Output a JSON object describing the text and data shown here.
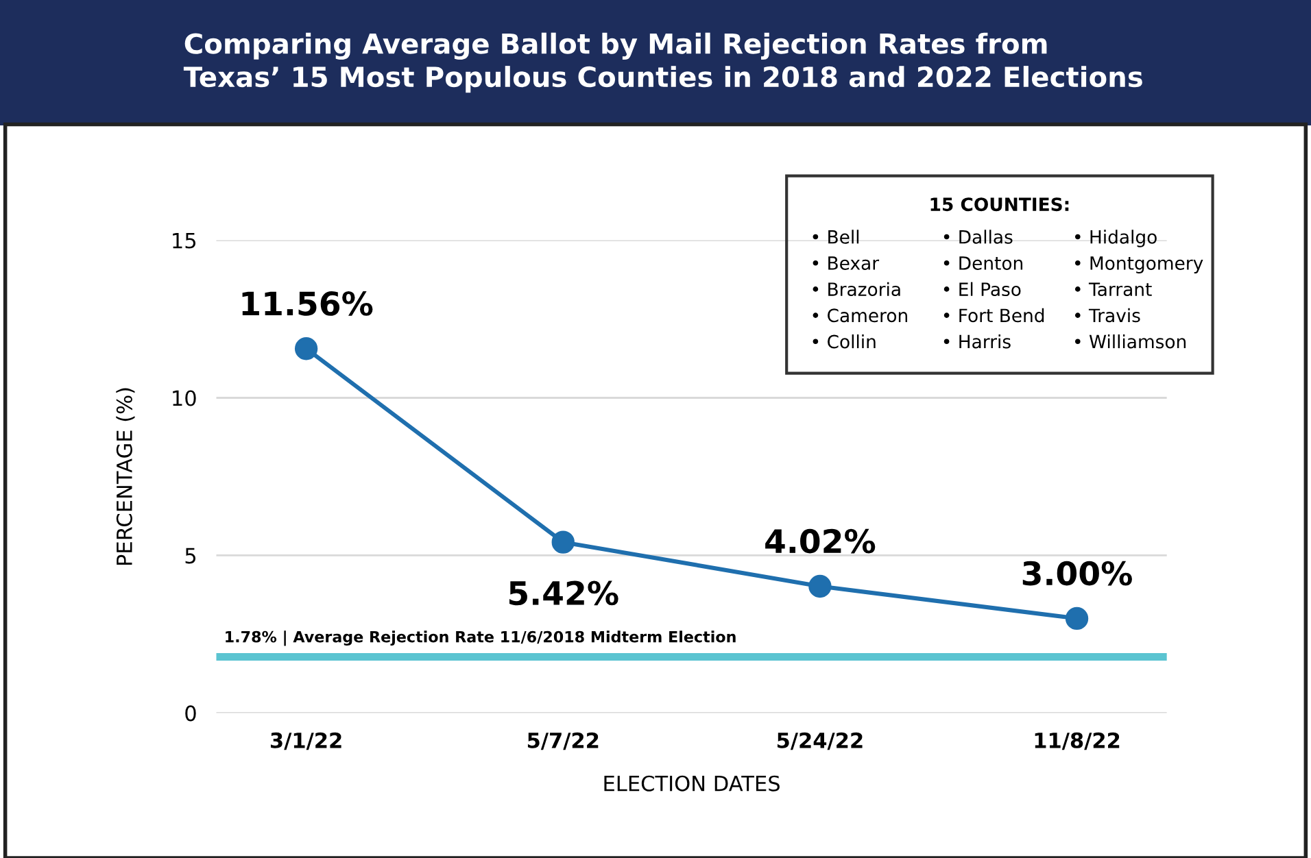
{
  "chart_data": {
    "type": "line",
    "title": "Comparing Average Ballot by Mail Rejection Rates from\nTexas’ 15 Most Populous Counties in 2018 and 2022 Elections",
    "xlabel": "ELECTION DATES",
    "ylabel": "PERCENTAGE (%)",
    "categories": [
      "3/1/22",
      "5/7/22",
      "5/24/22",
      "11/8/22"
    ],
    "values": [
      11.56,
      5.42,
      4.02,
      3.0
    ],
    "value_labels": [
      "11.56%",
      "5.42%",
      "4.02%",
      "3.00%"
    ],
    "color": "#1f6fae",
    "marker": "circle",
    "ylim": [
      0,
      15
    ],
    "yticks": [
      0,
      5,
      10,
      15
    ],
    "grid": "y",
    "ref_lines": [
      {
        "axis": "y",
        "value": 1.78,
        "label": "1.78% | Average Rejection Rate 11/6/2018 Midterm Election",
        "color": "#5bc4d1"
      }
    ],
    "annotations": [
      "15 COUNTIES:",
      "• Bell",
      "• Bexar",
      "• Brazoria",
      "• Cameron",
      "• Collin",
      "• Dallas",
      "• Denton",
      "• El Paso",
      "• Fort Bend",
      "• Harris",
      "• Hidalgo",
      "• Montgomery",
      "• Tarrant",
      "• Travis",
      "• Williamson"
    ]
  }
}
